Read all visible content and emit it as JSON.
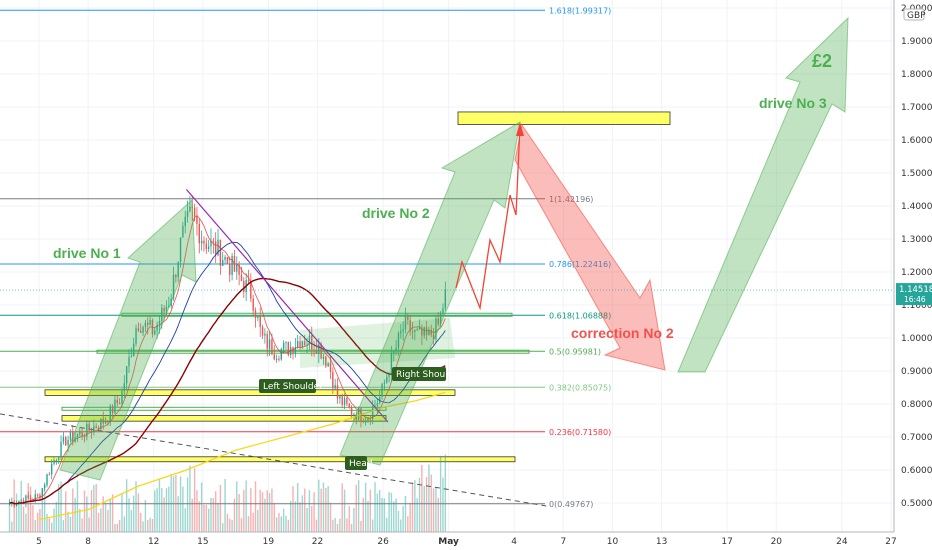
{
  "chart_data": {
    "type": "line",
    "title": "",
    "currency": "GBP",
    "price_axis": {
      "ticks": [
        "2.00000",
        "1.90000",
        "1.80000",
        "1.70000",
        "1.60000",
        "1.50000",
        "1.40000",
        "1.30000",
        "1.20000",
        "1.10000",
        "1.00000",
        "0.90000",
        "0.80000",
        "0.70000",
        "0.60000",
        "0.50000"
      ],
      "values": [
        2.0,
        1.9,
        1.8,
        1.7,
        1.6,
        1.5,
        1.4,
        1.3,
        1.2,
        1.1,
        1.0,
        0.9,
        0.8,
        0.7,
        0.6,
        0.5
      ],
      "ylim": [
        0.41,
        2.02
      ]
    },
    "time_axis": {
      "ticks": [
        "5",
        "8",
        "12",
        "15",
        "19",
        "22",
        "26",
        "May",
        "4",
        "7",
        "10",
        "13",
        "17",
        "20",
        "24",
        "27"
      ],
      "positions": [
        5,
        8,
        12,
        15,
        19,
        22,
        26,
        30,
        34,
        37,
        40,
        43,
        47,
        50,
        54,
        57
      ],
      "bold_tick": "May"
    },
    "last_price": {
      "value": 1.14518,
      "label": "1.14518",
      "countdown": "16:46"
    },
    "fib_levels": [
      {
        "ratio": "1.618",
        "price": 1.99317,
        "label": "1.618(1.99317)",
        "color": "#2196f3"
      },
      {
        "ratio": "1",
        "price": 1.42196,
        "label": "1(1.42196)",
        "color": "#787b86"
      },
      {
        "ratio": "0.786",
        "price": 1.22416,
        "label": "0.786(1.22416)",
        "color": "#2196f3"
      },
      {
        "ratio": "0.618",
        "price": 1.06888,
        "label": "0.618(1.06888)",
        "color": "#089981"
      },
      {
        "ratio": "0.5",
        "price": 0.95981,
        "label": "0.5(0.95981)",
        "color": "#4caf50"
      },
      {
        "ratio": "0.382",
        "price": 0.85075,
        "label": "0.382(0.85075)",
        "color": "#81c784"
      },
      {
        "ratio": "0.236",
        "price": 0.7158,
        "label": "0.236(0.71580)",
        "color": "#f23645"
      },
      {
        "ratio": "0",
        "price": 0.49767,
        "label": "0(0.49767)",
        "color": "#787b86"
      }
    ],
    "annotations": {
      "drive1": "drive No 1",
      "drive2": "drive No 2",
      "drive3": "drive No 3",
      "correction2": "correction No 2",
      "target": "£2",
      "left_shoulder": "Left Shoulder",
      "head": "Head",
      "right_shoulder": "Right Shoulder"
    },
    "colors": {
      "bull": "#26a69a",
      "bear": "#ef5350",
      "drive_arrow": "#4caf50",
      "correction_arrow": "#f44336",
      "zone": "#ffff66",
      "trendline": "#9c27b0",
      "ma_red": "#e53935",
      "ma_blue": "#1e3fa8",
      "ma_dark": "#8b0000",
      "ma_yellow": "#f9d71c"
    }
  }
}
